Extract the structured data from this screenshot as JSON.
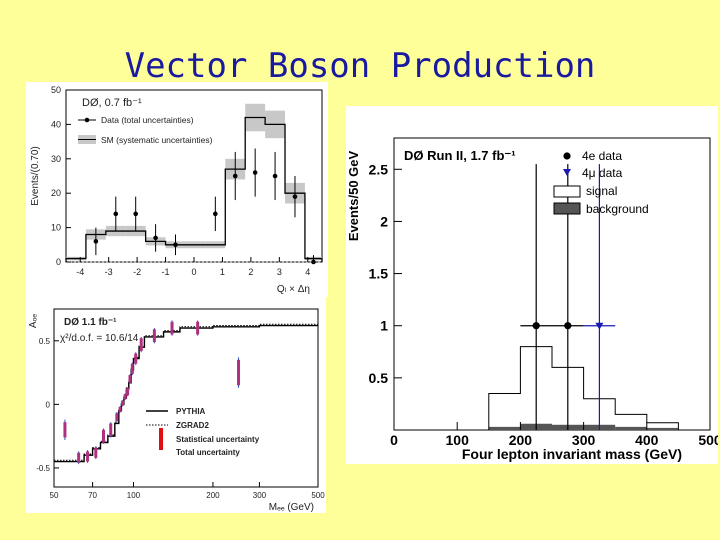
{
  "slide": {
    "title": "Vector Boson Production"
  },
  "chart_data": [
    {
      "type": "histogram",
      "id": "top-left",
      "title": "DØ, 0.7 fb⁻¹",
      "xlabel": "Qₗ × Δη",
      "ylabel": "Events/(0.70)",
      "xlim": [
        -4.5,
        4.5
      ],
      "ylim": [
        0,
        50
      ],
      "xticks": [
        "-4",
        "-3",
        "-2",
        "-1",
        "0",
        "1",
        "2",
        "3",
        "4"
      ],
      "yticks": [
        "0",
        "10",
        "20",
        "30",
        "40",
        "50"
      ],
      "legend": [
        {
          "label": "Data (total uncertainties)",
          "kind": "point"
        },
        {
          "label": "SM (systematic uncertainties)",
          "kind": "band"
        }
      ],
      "bin_edges": [
        -4.5,
        -3.8,
        -3.1,
        -2.4,
        -1.7,
        -1.0,
        -0.3,
        0.4,
        1.1,
        1.8,
        2.5,
        3.2,
        3.9,
        4.5
      ],
      "sm": [
        1,
        8,
        9,
        9,
        6,
        5,
        5,
        5,
        27,
        42,
        40,
        20,
        1
      ],
      "sm_err": [
        0.5,
        1.5,
        1.5,
        1.5,
        1.2,
        1,
        1,
        1,
        3,
        4,
        4,
        3,
        0.5
      ],
      "data_x": [
        -3.45,
        -2.75,
        -2.05,
        -1.35,
        -0.65,
        0.75,
        1.45,
        2.15,
        2.85,
        3.55,
        4.2
      ],
      "data_y": [
        6,
        14,
        14,
        7,
        5,
        14,
        25,
        26,
        25,
        19,
        0
      ],
      "data_err": [
        4,
        5,
        5,
        4,
        3,
        5,
        7,
        7,
        7,
        6,
        2
      ]
    },
    {
      "type": "step",
      "id": "bottom-left",
      "title": "DØ 1.1 fb⁻¹",
      "annotation": "χ²/d.o.f. = 10.6/14",
      "xlabel": "Mₑₑ (GeV)",
      "ylabel": "Aₒₑ",
      "xscale": "log",
      "xlim": [
        50,
        500
      ],
      "ylim": [
        -0.65,
        0.75
      ],
      "xticks": [
        50,
        70,
        100,
        200,
        300,
        500
      ],
      "yticks": [
        -0.5,
        0,
        0.5
      ],
      "ytick_labels": [
        "-0.5",
        "0",
        "0.5"
      ],
      "legend": [
        {
          "label": "PYTHIA",
          "kind": "solid"
        },
        {
          "label": "ZGRAD2",
          "kind": "dotted"
        },
        {
          "label": "Statistical uncertainty",
          "kind": "stat"
        },
        {
          "label": "Total uncertainty",
          "kind": "total"
        }
      ],
      "bin_edges": [
        50,
        60,
        65,
        70,
        75,
        80,
        85,
        88,
        90,
        92,
        94,
        96,
        98,
        100,
        105,
        110,
        130,
        150,
        200,
        300,
        500
      ],
      "pythia": [
        -0.45,
        -0.45,
        -0.4,
        -0.35,
        -0.3,
        -0.25,
        -0.15,
        -0.05,
        0,
        0.05,
        0.12,
        0.17,
        0.27,
        0.36,
        0.45,
        0.53,
        0.57,
        0.6,
        0.61,
        0.62
      ],
      "points": [
        {
          "x": 55,
          "y": -0.2,
          "stat": 0.06,
          "tot": 0.08
        },
        {
          "x": 62,
          "y": -0.42,
          "stat": 0.04,
          "tot": 0.05
        },
        {
          "x": 67,
          "y": -0.41,
          "stat": 0.04,
          "tot": 0.05
        },
        {
          "x": 72,
          "y": -0.38,
          "stat": 0.04,
          "tot": 0.05
        },
        {
          "x": 77,
          "y": -0.25,
          "stat": 0.05,
          "tot": 0.06
        },
        {
          "x": 82,
          "y": -0.2,
          "stat": 0.05,
          "tot": 0.06
        },
        {
          "x": 86.5,
          "y": -0.1,
          "stat": 0.03,
          "tot": 0.04
        },
        {
          "x": 89,
          "y": -0.04,
          "stat": 0.02,
          "tot": 0.025
        },
        {
          "x": 91,
          "y": 0.01,
          "stat": 0.02,
          "tot": 0.025
        },
        {
          "x": 93,
          "y": 0.06,
          "stat": 0.02,
          "tot": 0.025
        },
        {
          "x": 95,
          "y": 0.1,
          "stat": 0.03,
          "tot": 0.035
        },
        {
          "x": 97,
          "y": 0.2,
          "stat": 0.03,
          "tot": 0.035
        },
        {
          "x": 99,
          "y": 0.28,
          "stat": 0.04,
          "tot": 0.05
        },
        {
          "x": 102,
          "y": 0.36,
          "stat": 0.04,
          "tot": 0.05
        },
        {
          "x": 107,
          "y": 0.47,
          "stat": 0.05,
          "tot": 0.06
        },
        {
          "x": 120,
          "y": 0.54,
          "stat": 0.05,
          "tot": 0.06
        },
        {
          "x": 140,
          "y": 0.6,
          "stat": 0.05,
          "tot": 0.06
        },
        {
          "x": 175,
          "y": 0.6,
          "stat": 0.05,
          "tot": 0.06
        },
        {
          "x": 250,
          "y": 0.25,
          "stat": 0.1,
          "tot": 0.12
        }
      ]
    },
    {
      "type": "histogram",
      "id": "right",
      "title": "DØ Run II, 1.7 fb⁻¹",
      "xlabel": "Four lepton invariant mass (GeV)",
      "ylabel": "Events/50 GeV",
      "xlim": [
        0,
        500
      ],
      "ylim": [
        0,
        2.8
      ],
      "xticks": [
        0,
        100,
        200,
        300,
        400,
        500
      ],
      "xtick_labels": [
        "0",
        "100",
        "200",
        "300",
        "400",
        "500"
      ],
      "yticks": [
        0.5,
        1,
        1.5,
        2,
        2.5
      ],
      "ytick_labels": [
        "0.5",
        "1",
        "1.5",
        "2",
        "2.5"
      ],
      "legend": [
        {
          "label": "4e data",
          "kind": "circle"
        },
        {
          "label": "4μ data",
          "kind": "triangle"
        },
        {
          "label": "signal",
          "kind": "open"
        },
        {
          "label": "background",
          "kind": "filled"
        }
      ],
      "bin_edges": [
        0,
        50,
        100,
        150,
        200,
        250,
        300,
        350,
        400,
        450,
        500
      ],
      "signal": [
        0,
        0,
        0,
        0.35,
        0.8,
        0.6,
        0.3,
        0.15,
        0.07,
        0
      ],
      "background": [
        0,
        0,
        0,
        0.03,
        0.06,
        0.05,
        0.05,
        0.03,
        0.02,
        0
      ],
      "points_4e": [
        {
          "x": 225,
          "y": 1,
          "err_lo": 1,
          "err_hi": 1.55
        },
        {
          "x": 275,
          "y": 1,
          "err_lo": 1,
          "err_hi": 1.55
        }
      ],
      "points_4mu": [
        {
          "x": 325,
          "y": 1,
          "err_lo": 1,
          "err_hi": 1.55,
          "xerr": 25
        }
      ]
    }
  ]
}
